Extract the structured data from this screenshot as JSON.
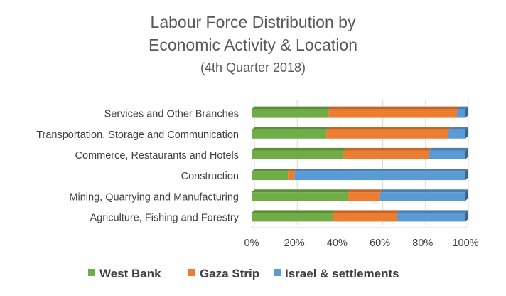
{
  "chart_data": {
    "type": "bar",
    "orientation": "horizontal",
    "stacked": true,
    "title": [
      "Labour Force Distribution by",
      "Economic Activity & Location"
    ],
    "subtitle": "(4th Quarter 2018)",
    "categories": [
      "Services and Other Branches",
      "Transportation, Storage and Communication",
      "Commerce, Restaurants and Hotels",
      "Construction",
      "Mining, Quarrying and Manufacturing",
      "Agriculture, Fishing and Forestry"
    ],
    "series": [
      {
        "name": "West Bank",
        "color": "#70AD47",
        "values": [
          36,
          35,
          43,
          17,
          45,
          38
        ]
      },
      {
        "name": "Gaza Strip",
        "color": "#ED7D31",
        "values": [
          60,
          57,
          40,
          3,
          15,
          30
        ]
      },
      {
        "name": "Israel & settlements",
        "color": "#5B9BD5",
        "values": [
          4,
          8,
          17,
          80,
          40,
          32
        ]
      }
    ],
    "xlim": [
      0,
      100
    ],
    "xticks": [
      "0%",
      "20%",
      "40%",
      "60%",
      "80%",
      "100%"
    ],
    "grid": true,
    "legend_position": "bottom"
  }
}
